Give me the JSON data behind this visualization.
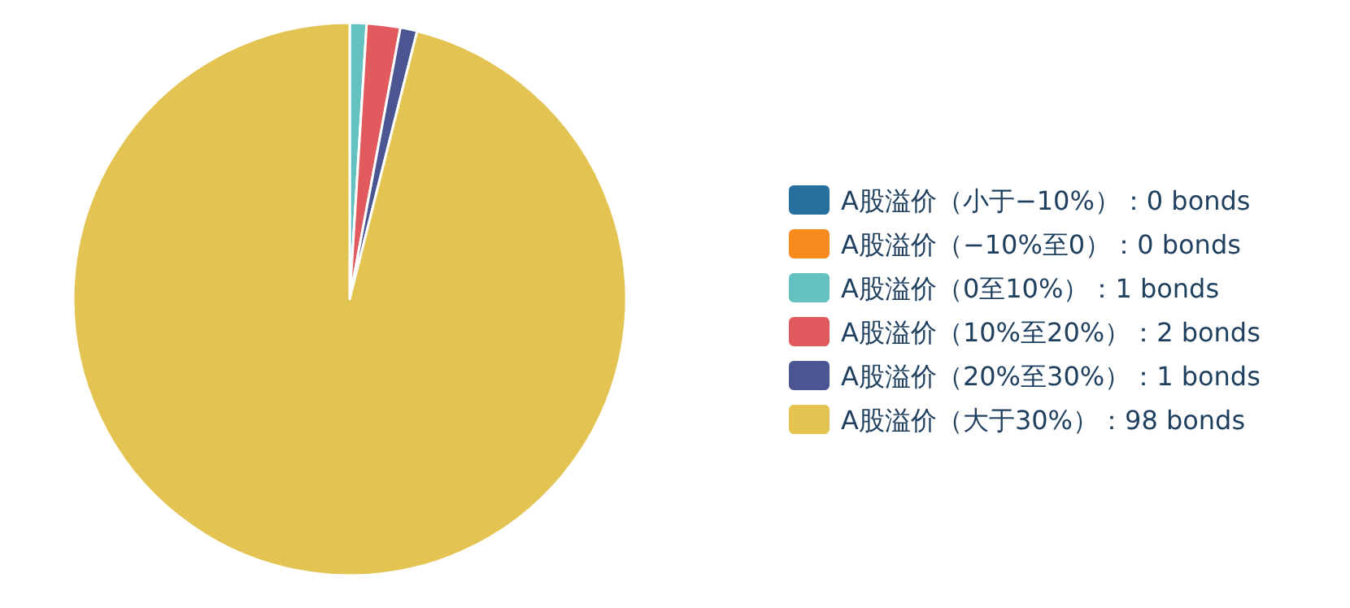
{
  "chart_data": {
    "type": "pie",
    "categories": [
      "A股溢价（小于−10%）：0 bonds",
      "A股溢价（−10%至0）：0 bonds",
      "A股溢价（0至10%）：1 bonds",
      "A股溢价（10%至20%）：2 bonds",
      "A股溢价（20%至30%）：1 bonds",
      "A股溢价（大于30%）：98 bonds"
    ],
    "values": [
      0,
      0,
      1,
      2,
      1,
      98
    ],
    "colors": [
      "#25709e",
      "#f68b1f",
      "#63c2c0",
      "#e15b5e",
      "#4a5591",
      "#e3c453"
    ],
    "legend": "right"
  }
}
